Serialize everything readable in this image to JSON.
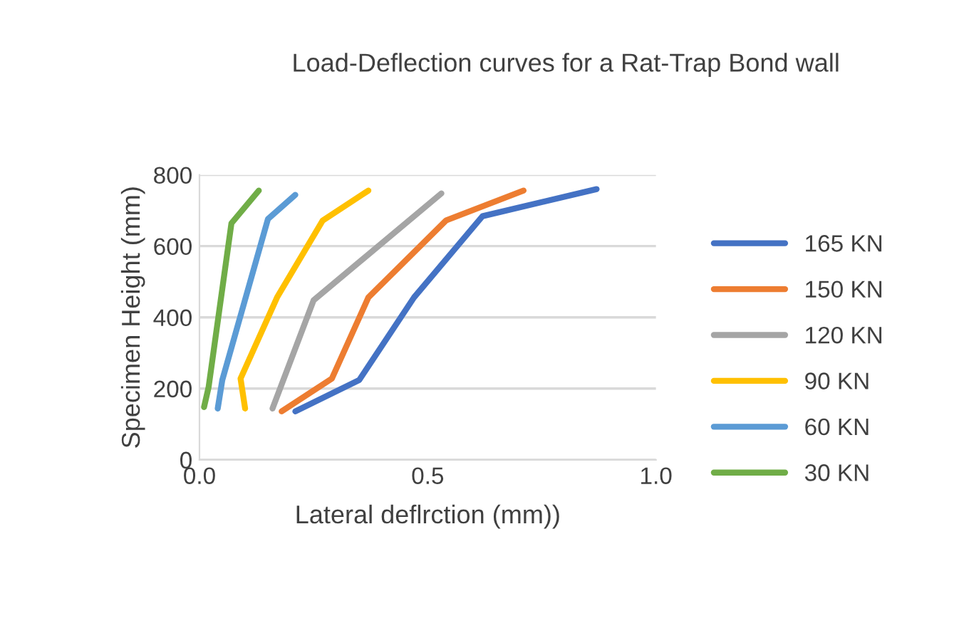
{
  "chart_data": {
    "type": "line",
    "title": "Load-Deflection curves for a Rat-Trap Bond wall",
    "xlabel": "Lateral deflrction (mm))",
    "ylabel": "Specimen Height (mm)",
    "xlim": [
      0,
      1.0
    ],
    "xticks": [
      {
        "value": 0,
        "label": "0.0"
      },
      0.5,
      {
        "value": 1.0,
        "label": "1.0"
      }
    ],
    "ylim": [
      0,
      800
    ],
    "yticks": [
      0,
      200,
      400,
      600,
      800
    ],
    "grid": "y",
    "legend": "right",
    "line_style": "solid",
    "marker": "none",
    "series": [
      {
        "name": "165 KN",
        "color": "#4472c4",
        "x": [
          0.21,
          0.35,
          0.47,
          0.62,
          0.87
        ],
        "values": [
          136,
          224,
          456,
          684,
          760
        ]
      },
      {
        "name": "150 KN",
        "color": "#ed7d31",
        "x": [
          0.18,
          0.29,
          0.37,
          0.54,
          0.71
        ],
        "values": [
          136,
          228,
          456,
          672,
          756
        ]
      },
      {
        "name": "120 KN",
        "color": "#a5a5a5",
        "x": [
          0.16,
          0.25,
          0.53
        ],
        "values": [
          144,
          448,
          748
        ]
      },
      {
        "name": "90 KN",
        "color": "#ffc000",
        "x": [
          0.1,
          0.09,
          0.17,
          0.27,
          0.37
        ],
        "values": [
          144,
          228,
          456,
          672,
          756
        ]
      },
      {
        "name": "60 KN",
        "color": "#5b9bd5",
        "x": [
          0.04,
          0.05,
          0.15,
          0.21
        ],
        "values": [
          144,
          224,
          676,
          744
        ]
      },
      {
        "name": "30 KN",
        "color": "#70ad47",
        "x": [
          0.01,
          0.02,
          0.07,
          0.13
        ],
        "values": [
          148,
          204,
          664,
          756
        ]
      }
    ]
  }
}
